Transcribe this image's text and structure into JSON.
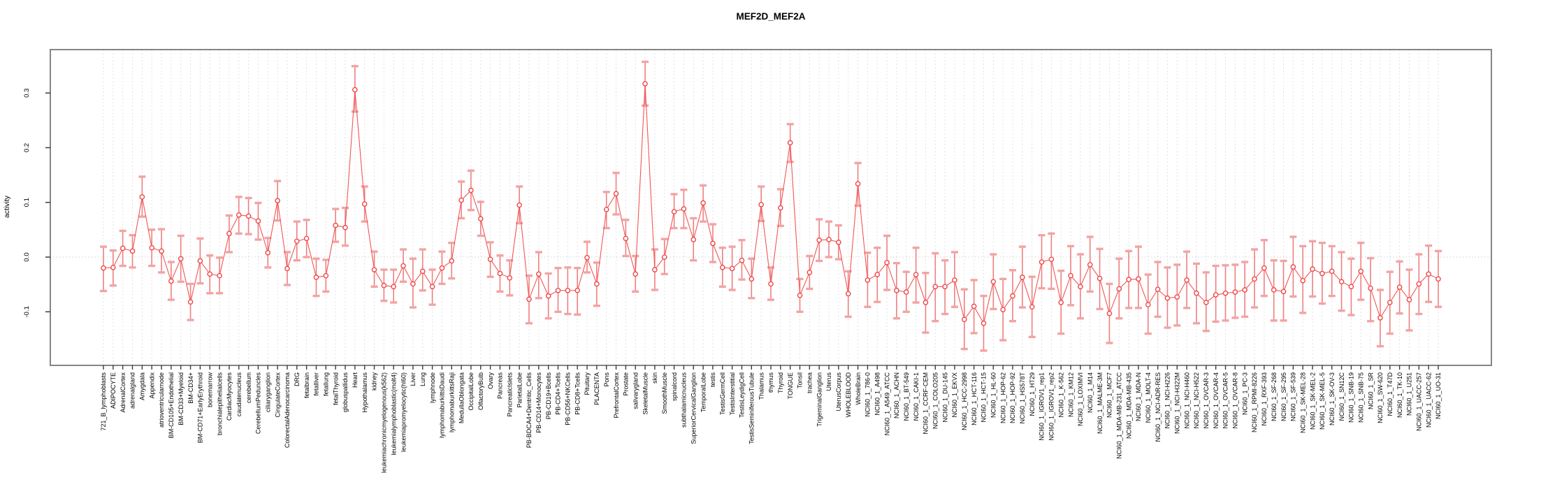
{
  "page": {
    "background": "#ffffff"
  },
  "chart_data": {
    "type": "line",
    "title": "MEF2D_MEF2A",
    "ylabel": "activity",
    "xlabel": "",
    "legend": null,
    "grid": "vertical dashed gridline at every category; dotted horizontal line at y=0",
    "yticks": [
      -0.1,
      0.0,
      0.1,
      0.2,
      0.3
    ],
    "ylim": [
      -0.198,
      0.379
    ],
    "point_color": "#f04848",
    "line_color": "#f25555",
    "errorbar_color": "#ee7f7f",
    "errorbar_cap_color": "#f3a3a3",
    "gridline_color": "#e2e2e2",
    "box_color": "#858585",
    "categories": [
      "721_B_lymphoblasts",
      "ADIPOCYTE",
      "AdrenalCortex",
      "adrenalgland",
      "Amygdala",
      "Appendix",
      "atrioventricularnode",
      "BM-CD105+Endothelial",
      "BM-CD33+Myeloid",
      "BM-CD34+",
      "BM-CD71+EarlyErythroid",
      "bonemarrow",
      "bronchialepithelialcells",
      "CardiacMyocytes",
      "caudatenucleus",
      "cerebellum",
      "CerebellumPeduncles",
      "ciliaryganglion",
      "CingulateCortex",
      "ColorectalAdenocarcinoma",
      "DRG",
      "fetalbrain",
      "fetalliver",
      "fetallung",
      "fetalThyroid",
      "globuspallidus",
      "Heart",
      "Hypothalamus",
      "kidney",
      "leukemiachronicmyelogenous(k562)",
      "leukemialymphoblastic(molt4)",
      "leukemiapromyelocytic(hl60)",
      "Liver",
      "Lung",
      "lymphnode",
      "lymphomaburkittsDaudi",
      "lymphomaburkittsRaji",
      "MedullaOblongata",
      "OccipitalLobe",
      "OlfactoryBulb",
      "Ovary",
      "Pancreas",
      "PancreaticIslets",
      "ParietalLobe",
      "PB-BDCA4+Dentritic_Cells",
      "PB-CD14+Monocytes",
      "PB-CD19+Bcells",
      "PB-CD4+Tcells",
      "PB-CD56+NKCells",
      "PB-CD8+Tcells",
      "Pituitary",
      "PLACENTA",
      "Pons",
      "PrefrontalCortex",
      "Prostate",
      "salivarygland",
      "SkeletalMuscle",
      "skin",
      "SmoothMuscle",
      "spinalcord",
      "subthalamicnucleus",
      "SuperiorCervicalGanglion",
      "TemporalLobe",
      "testis",
      "TestisGermCell",
      "TestisInterstitial",
      "TestisLeydigCell",
      "TestisSeminiferousTubule",
      "Thalamus",
      "thymus",
      "Thyroid",
      "TONGUE",
      "Tonsil",
      "trachea",
      "TrigeminalGanglion",
      "Uterus",
      "UterusCorpus",
      "WHOLEBLOOD",
      "WholeBrain",
      "NCI60_1_786-0",
      "NCI60_1_A498",
      "NCI60_1_A549_ATCC",
      "NCI60_1_ACHN",
      "NCI60_1_BT-549",
      "NCI60_1_CAKI-1",
      "NCI60_1_CCRF-CEM",
      "NCI60_1_COLO205",
      "NCI60_1_DU-145",
      "NCI60_1_EKVX",
      "NCI60_1_HCC-2998",
      "NCI60_1_HCT-116",
      "NCI60_1_HCT-15",
      "NCI60_1_HL-60",
      "NCI60_1_HOP-62",
      "NCI60_1_HOP-92",
      "NCI60_1_HS578T",
      "NCI60_1_HT29",
      "NCI60_1_IGROV1_rep1",
      "NCI60_1_IGROV1_rep2",
      "NCI60_1_K-562",
      "NCI60_1_KM12",
      "NCI60_1_LOXIMVI",
      "NCI60_1_M14",
      "NCI60_1_MALME-3M",
      "NCI60_1_MCF7",
      "NCI60_1_MDA-MB-231_ATCC",
      "NCI60_1_MDA-MB-435",
      "NCI60_1_MDA-N",
      "NCI60_1_MOLT-4",
      "NCI60_1_NCI-ADR-RES",
      "NCI60_1_NCI-H226",
      "NCI60_1_NCI-H322M",
      "NCI60_1_NCI-H460",
      "NCI60_1_NCI-H522",
      "NCI60_1_OVCAR-3",
      "NCI60_1_OVCAR-4",
      "NCI60_1_OVCAR-5",
      "NCI60_1_OVCAR-8",
      "NCI60_1_PC-3",
      "NCI60_1_RPMI-8226",
      "NCI60_1_RXF-393",
      "NCI60_1_SF-268",
      "NCI60_1_SF-295",
      "NCI60_1_SF-539",
      "NCI60_1_SK-MEL-28",
      "NCI60_1_SK-MEL-2",
      "NCI60_1_SK-MEL-5",
      "NCI60_1_SK-OV-3",
      "NCI60_1_SN12C",
      "NCI60_1_SNB-19",
      "NCI60_1_SNB-75",
      "NCI60_1_SR",
      "NCI60_1_SW-620",
      "NCI60_1_T47D",
      "NCI60_1_TK-10",
      "NCI60_1_U251",
      "NCI60_1_UACC-257",
      "NCI60_1_UACC-62",
      "NCI60_1_UO-31"
    ],
    "series": [
      {
        "name": "activity",
        "values": [
          -0.02,
          -0.019,
          0.016,
          0.011,
          0.11,
          0.017,
          0.011,
          -0.044,
          -0.003,
          -0.082,
          -0.007,
          -0.031,
          -0.034,
          0.043,
          0.077,
          0.075,
          0.066,
          0.008,
          0.103,
          -0.021,
          0.029,
          0.034,
          -0.037,
          -0.034,
          0.058,
          0.054,
          0.306,
          0.097,
          -0.023,
          -0.052,
          -0.054,
          -0.016,
          -0.049,
          -0.026,
          -0.054,
          -0.02,
          -0.007,
          0.104,
          0.122,
          0.07,
          -0.004,
          -0.03,
          -0.038,
          0.095,
          -0.077,
          -0.031,
          -0.071,
          -0.061,
          -0.061,
          -0.061,
          -0.001,
          -0.049,
          0.087,
          0.116,
          0.034,
          -0.031,
          0.317,
          -0.023,
          0.0,
          0.083,
          0.088,
          0.032,
          0.099,
          0.025,
          -0.019,
          -0.021,
          -0.006,
          -0.04,
          0.096,
          -0.049,
          0.09,
          0.209,
          -0.07,
          -0.028,
          0.031,
          0.032,
          0.027,
          -0.067,
          0.134,
          -0.042,
          -0.032,
          -0.01,
          -0.061,
          -0.064,
          -0.032,
          -0.083,
          -0.054,
          -0.054,
          -0.042,
          -0.114,
          -0.09,
          -0.121,
          -0.045,
          -0.096,
          -0.071,
          -0.037,
          -0.091,
          -0.009,
          -0.004,
          -0.083,
          -0.034,
          -0.054,
          -0.014,
          -0.039,
          -0.103,
          -0.058,
          -0.041,
          -0.04,
          -0.087,
          -0.059,
          -0.075,
          -0.073,
          -0.042,
          -0.066,
          -0.083,
          -0.069,
          -0.066,
          -0.064,
          -0.06,
          -0.04,
          -0.02,
          -0.06,
          -0.063,
          -0.018,
          -0.043,
          -0.022,
          -0.03,
          -0.026,
          -0.045,
          -0.054,
          -0.026,
          -0.057,
          -0.111,
          -0.083,
          -0.055,
          -0.078,
          -0.049,
          -0.031,
          -0.04
        ],
        "err_low": [
          -0.062,
          -0.052,
          -0.016,
          -0.019,
          0.074,
          -0.016,
          -0.028,
          -0.078,
          -0.045,
          -0.115,
          -0.048,
          -0.066,
          -0.066,
          0.009,
          0.043,
          0.042,
          0.032,
          -0.019,
          0.067,
          -0.051,
          -0.006,
          0.0,
          -0.071,
          -0.063,
          0.028,
          0.021,
          0.266,
          0.065,
          -0.054,
          -0.08,
          -0.083,
          -0.045,
          -0.092,
          -0.061,
          -0.087,
          -0.049,
          -0.039,
          0.071,
          0.086,
          0.039,
          -0.036,
          -0.063,
          -0.07,
          0.062,
          -0.121,
          -0.075,
          -0.112,
          -0.1,
          -0.104,
          -0.105,
          -0.028,
          -0.089,
          0.053,
          0.078,
          0.002,
          -0.063,
          0.277,
          -0.06,
          -0.031,
          0.053,
          0.053,
          -0.006,
          0.065,
          -0.009,
          -0.054,
          -0.06,
          -0.041,
          -0.075,
          0.066,
          -0.078,
          0.057,
          0.174,
          -0.1,
          -0.058,
          -0.007,
          0.0,
          -0.004,
          -0.109,
          0.094,
          -0.091,
          -0.082,
          -0.06,
          -0.112,
          -0.1,
          -0.083,
          -0.138,
          -0.117,
          -0.104,
          -0.091,
          -0.168,
          -0.139,
          -0.171,
          -0.095,
          -0.152,
          -0.117,
          -0.092,
          -0.146,
          -0.057,
          -0.058,
          -0.14,
          -0.088,
          -0.112,
          -0.063,
          -0.095,
          -0.157,
          -0.112,
          -0.093,
          -0.093,
          -0.14,
          -0.109,
          -0.129,
          -0.125,
          -0.093,
          -0.121,
          -0.135,
          -0.118,
          -0.116,
          -0.111,
          -0.109,
          -0.092,
          -0.071,
          -0.116,
          -0.116,
          -0.072,
          -0.102,
          -0.072,
          -0.085,
          -0.071,
          -0.098,
          -0.106,
          -0.078,
          -0.117,
          -0.163,
          -0.14,
          -0.103,
          -0.134,
          -0.104,
          -0.082,
          -0.091
        ],
        "err_high": [
          0.019,
          0.012,
          0.048,
          0.04,
          0.147,
          0.05,
          0.051,
          -0.009,
          0.039,
          -0.049,
          0.034,
          0.003,
          -0.001,
          0.076,
          0.11,
          0.108,
          0.099,
          0.035,
          0.139,
          0.009,
          0.065,
          0.068,
          -0.003,
          -0.005,
          0.088,
          0.09,
          0.349,
          0.129,
          0.01,
          -0.023,
          -0.023,
          0.014,
          -0.003,
          0.014,
          -0.023,
          0.01,
          0.026,
          0.138,
          0.158,
          0.101,
          0.027,
          0.003,
          -0.006,
          0.129,
          -0.034,
          0.009,
          -0.03,
          -0.02,
          -0.019,
          -0.02,
          0.028,
          -0.01,
          0.119,
          0.154,
          0.068,
          0.002,
          0.357,
          0.014,
          0.033,
          0.115,
          0.123,
          0.071,
          0.131,
          0.06,
          0.017,
          0.019,
          0.031,
          -0.003,
          0.129,
          -0.019,
          0.124,
          0.243,
          -0.04,
          0.002,
          0.069,
          0.065,
          0.058,
          -0.026,
          0.172,
          0.008,
          0.017,
          0.039,
          -0.011,
          -0.027,
          0.017,
          -0.029,
          0.007,
          -0.006,
          0.009,
          -0.059,
          -0.042,
          -0.071,
          0.005,
          -0.04,
          -0.024,
          0.019,
          -0.036,
          0.04,
          0.043,
          -0.025,
          0.02,
          0.005,
          0.037,
          0.015,
          -0.049,
          -0.003,
          0.011,
          0.019,
          -0.032,
          -0.009,
          -0.019,
          -0.014,
          0.01,
          -0.012,
          -0.028,
          -0.016,
          -0.015,
          -0.014,
          -0.009,
          0.014,
          0.031,
          -0.006,
          -0.007,
          0.037,
          0.02,
          0.029,
          0.026,
          0.02,
          0.009,
          -0.003,
          0.026,
          -0.002,
          -0.06,
          -0.027,
          -0.008,
          -0.023,
          0.005,
          0.021,
          0.011
        ]
      }
    ]
  }
}
